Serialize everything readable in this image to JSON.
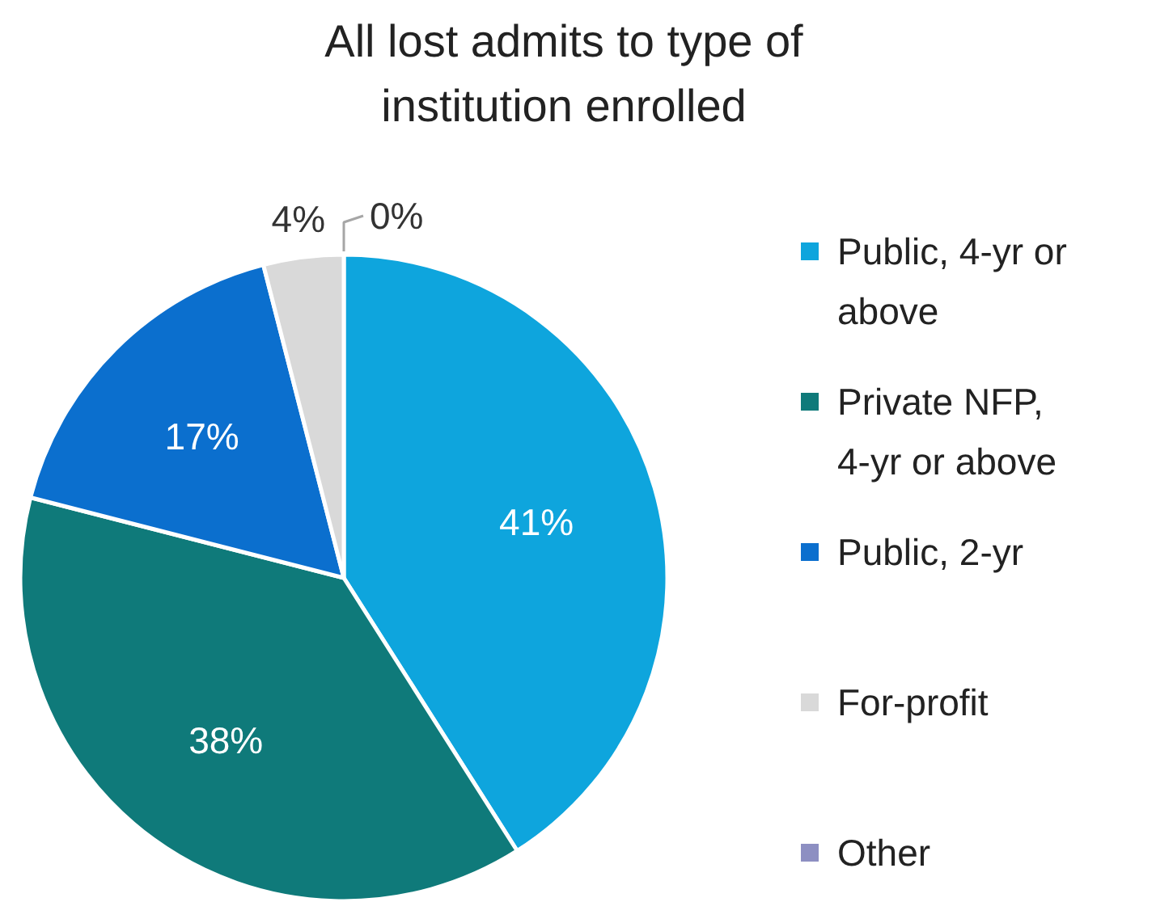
{
  "chart_data": {
    "type": "pie",
    "title": "All lost admits to type of institution enrolled",
    "categories": [
      "Public, 4-yr or above",
      "Private NFP, 4-yr or above",
      "Public, 2-yr",
      "For-profit",
      "Other"
    ],
    "values": [
      41,
      38,
      17,
      4,
      0
    ],
    "colors": [
      "#0ea5dd",
      "#0f7a7a",
      "#0b6fce",
      "#d9d9d9",
      "#8d8fc2"
    ],
    "value_labels": [
      "41%",
      "38%",
      "17%",
      "4%",
      "0%"
    ],
    "legend": "right"
  }
}
